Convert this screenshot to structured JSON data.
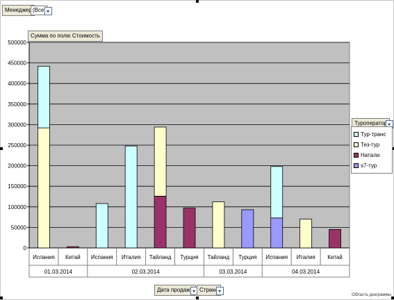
{
  "filters": {
    "manager_label": "Менеджер",
    "manager_value": "(Все)",
    "measure_label": "Сумма по полю Стоимость",
    "row_field_1": "Дата продажи",
    "row_field_2": "Страна",
    "series_field": "Туроператор",
    "area_label": "Область диаграммы"
  },
  "colors": {
    "Тур-транс": "#ccffff",
    "Тез-тур": "#ffffcc",
    "Натали": "#993366",
    "s7-тур": "#9999ff",
    "plot_bg": "#c0c0c0"
  },
  "chart_data": {
    "type": "bar",
    "stacked": true,
    "title": "",
    "ylim": [
      0,
      500000
    ],
    "yticks": [
      0,
      50000,
      100000,
      150000,
      200000,
      250000,
      300000,
      350000,
      400000,
      450000,
      500000
    ],
    "grid": true,
    "legend_position": "right",
    "groups": [
      {
        "label": "01.03.2014",
        "categories": [
          "Испания",
          "Китай"
        ]
      },
      {
        "label": "02.03.2014",
        "categories": [
          "Испания",
          "Италия",
          "Тайланд",
          "Турция"
        ]
      },
      {
        "label": "03.03.2014",
        "categories": [
          "Тайланд",
          "Турция"
        ]
      },
      {
        "label": "04.03.2014",
        "categories": [
          "Испания",
          "Италия",
          "Китай"
        ]
      }
    ],
    "categories": [
      "Испания",
      "Китай",
      "Испания",
      "Италия",
      "Тайланд",
      "Турция",
      "Тайланд",
      "Турция",
      "Испания",
      "Италия",
      "Китай"
    ],
    "series": [
      {
        "name": "Тур-транс",
        "values": [
          150000,
          0,
          108000,
          248000,
          0,
          0,
          0,
          0,
          125000,
          0,
          0
        ]
      },
      {
        "name": "Тез-тур",
        "values": [
          292000,
          0,
          0,
          0,
          168000,
          0,
          112000,
          0,
          0,
          70000,
          0
        ]
      },
      {
        "name": "Натали",
        "values": [
          0,
          3000,
          0,
          0,
          126000,
          97000,
          0,
          0,
          0,
          0,
          45000
        ]
      },
      {
        "name": "s7-тур",
        "values": [
          0,
          0,
          0,
          0,
          0,
          0,
          0,
          93000,
          73000,
          0,
          0
        ]
      }
    ],
    "stack_order": [
      "s7-тур",
      "Натали",
      "Тез-тур",
      "Тур-транс"
    ]
  }
}
